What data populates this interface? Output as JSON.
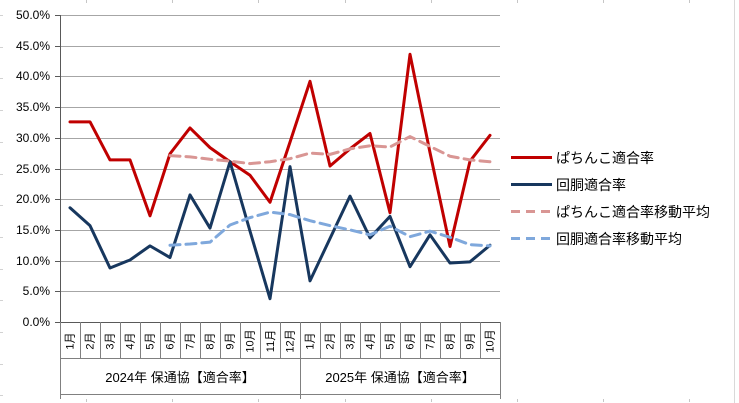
{
  "chart_data": {
    "type": "line",
    "title": "",
    "grid": true,
    "legend_position": "right",
    "y_axis": {
      "min": 0,
      "max": 50,
      "step": 5,
      "tick_labels": [
        "50.0%",
        "45.0%",
        "40.0%",
        "35.0%",
        "30.0%",
        "25.0%",
        "20.0%",
        "15.0%",
        "10.0%",
        "5.0%",
        "0.0%"
      ]
    },
    "x_axis": {
      "months": [
        "1月",
        "2月",
        "3月",
        "4月",
        "5月",
        "6月",
        "7月",
        "8月",
        "9月",
        "10月",
        "11月",
        "12月",
        "1月",
        "2月",
        "3月",
        "4月",
        "5月",
        "6月",
        "7月",
        "8月",
        "9月",
        "10月"
      ],
      "groups": [
        {
          "label": "2024年 保通協【適合率】",
          "span": 12
        },
        {
          "label": "2025年 保通協【適合率】",
          "span": 10
        }
      ]
    },
    "series": [
      {
        "name": "ぱちんこ適合率",
        "color": "#C00000",
        "style": "solid",
        "values": [
          32.6,
          32.6,
          26.4,
          26.4,
          17.3,
          27.4,
          31.6,
          28.4,
          26.1,
          23.9,
          19.5,
          29.3,
          39.2,
          25.4,
          28.2,
          30.7,
          17.8,
          43.6,
          27.6,
          12.3,
          26.2,
          30.4
        ]
      },
      {
        "name": "回胴適合率",
        "color": "#17375E",
        "style": "solid",
        "values": [
          18.6,
          15.7,
          8.8,
          10.1,
          12.4,
          10.5,
          20.7,
          15.3,
          26.1,
          14.8,
          3.8,
          25.3,
          6.7,
          13.6,
          20.5,
          13.7,
          17.2,
          9.0,
          14.2,
          9.6,
          9.8,
          12.5
        ]
      },
      {
        "name": "ぱちんこ適合率移動平均",
        "color": "#D99694",
        "style": "dashed",
        "values": [
          null,
          null,
          null,
          null,
          null,
          27.1,
          26.9,
          26.5,
          26.2,
          25.8,
          26.1,
          26.6,
          27.5,
          27.3,
          28.2,
          28.7,
          28.5,
          30.2,
          28.6,
          27.0,
          26.4,
          26.1
        ]
      },
      {
        "name": "回胴適合率移動平均",
        "color": "#7FA8DC",
        "style": "dashed",
        "values": [
          null,
          null,
          null,
          null,
          null,
          12.5,
          12.7,
          13.0,
          15.8,
          17.0,
          17.9,
          17.5,
          16.5,
          15.7,
          15.0,
          14.2,
          15.6,
          13.9,
          14.8,
          13.8,
          12.6,
          12.4
        ]
      }
    ],
    "colors": {
      "gridline": "#A6A6A6",
      "axis": "#595959",
      "category_separator": "#808080"
    }
  }
}
